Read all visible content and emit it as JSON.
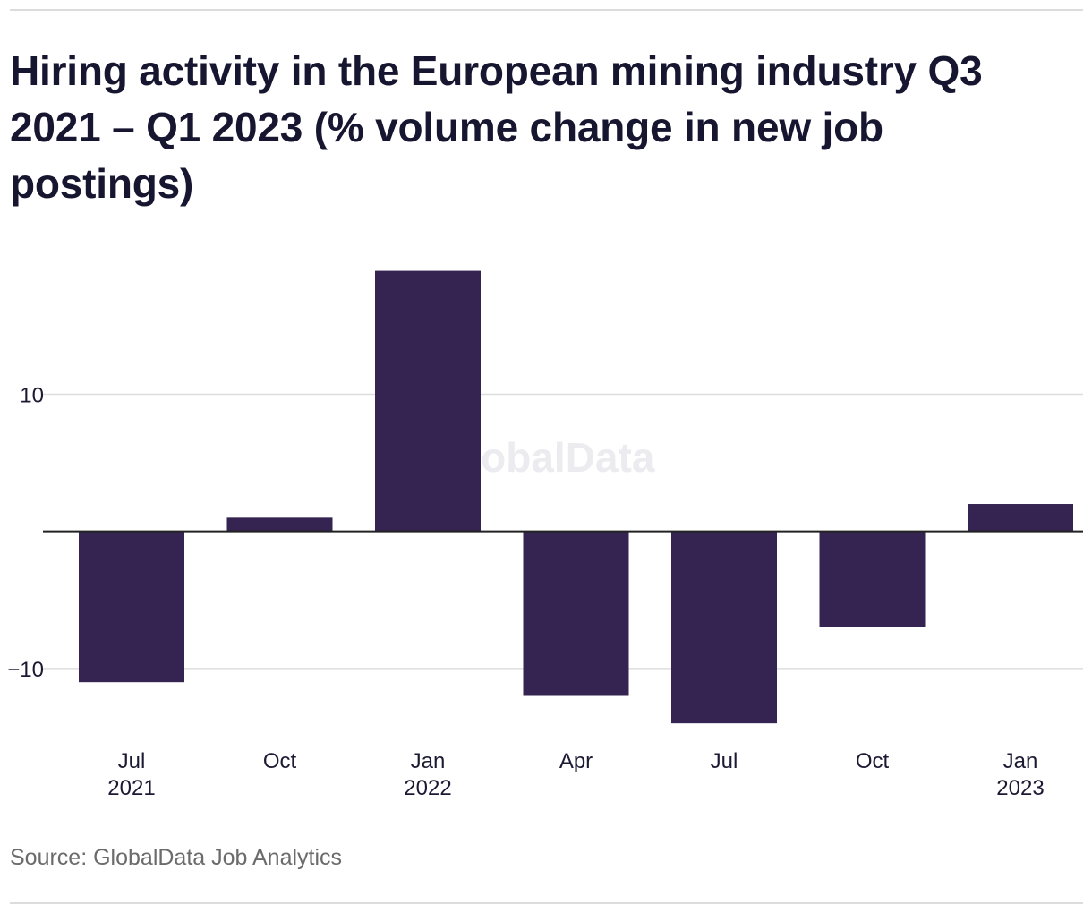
{
  "title": "Hiring activity in the European mining industry Q3 2021 – Q1 2023 (% volume change in new job postings)",
  "source": "Source: GlobalData Job Analytics",
  "watermark": "GlobalData",
  "colors": {
    "bar": "#352451",
    "grid": "#dedede",
    "zero_line": "#222222",
    "text": "#1c1a33",
    "watermark": "#ecebf0"
  },
  "chart_data": {
    "type": "bar",
    "categories": [
      "Jul 2021",
      "Oct",
      "Jan 2022",
      "Apr",
      "Jul",
      "Oct",
      "Jan 2023"
    ],
    "tick_labels": [
      [
        "Jul",
        "2021"
      ],
      [
        "Oct",
        ""
      ],
      [
        "Jan",
        "2022"
      ],
      [
        "Apr",
        ""
      ],
      [
        "Jul",
        ""
      ],
      [
        "Oct",
        ""
      ],
      [
        "Jan",
        "2023"
      ]
    ],
    "values": [
      -11.0,
      1.0,
      19.0,
      -12.0,
      -14.0,
      -7.0,
      2.0
    ],
    "yticks": [
      -10,
      10
    ],
    "ytick_labels": [
      "−10",
      "10"
    ],
    "ylim": [
      -15.1,
      20.8
    ],
    "xlabel": "",
    "ylabel": "",
    "grid": true,
    "legend": "none"
  }
}
